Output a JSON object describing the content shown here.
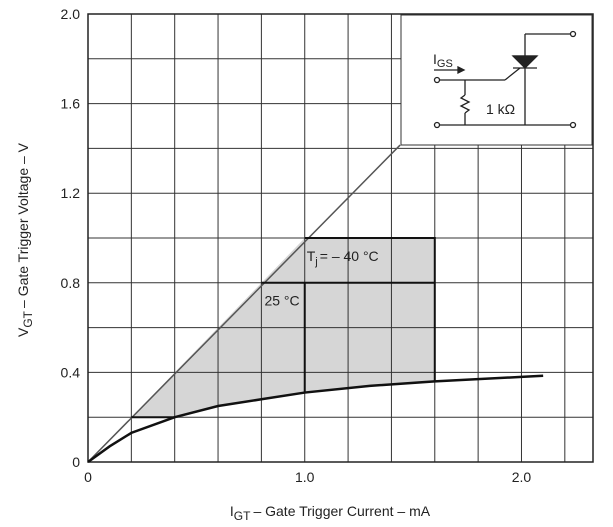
{
  "chart_data": {
    "type": "line",
    "y_label": {
      "main": "V",
      "sub": "GT",
      "rest": "– Gate Trigger Voltage – V"
    },
    "x_label": {
      "main": "I",
      "sub": "GT",
      "rest": "– Gate Trigger Current – mA"
    },
    "xlim": [
      0,
      2.33
    ],
    "ylim": [
      0,
      2.0
    ],
    "xticks": [
      0,
      {
        "value": 1,
        "label": "1.0"
      },
      {
        "value": 2,
        "label": "2.0"
      }
    ],
    "yticks": [
      0,
      0.4,
      0.8,
      1.2,
      1.6,
      {
        "value": 2,
        "label": "2.0"
      }
    ],
    "xgrid": [
      0.2,
      0.4,
      0.6,
      0.8,
      1.2,
      1.4,
      1.6,
      1.8,
      2.2
    ],
    "ygrid": [
      0.2,
      0.6,
      1.0,
      1.4,
      1.8
    ],
    "region": {
      "color": "#d6d6d6",
      "x": [
        0.2,
        1.0,
        1.6,
        1.6,
        1.3,
        1.0,
        0.8,
        0.6,
        0.4
      ],
      "values": [
        0.2,
        1.0,
        1.0,
        0.36,
        0.34,
        0.31,
        0.28,
        0.25,
        0.2
      ]
    },
    "series": [
      {
        "color": "#555",
        "width": 1.5,
        "x": [
          0,
          1.44
        ],
        "values": [
          0,
          1.415
        ]
      },
      {
        "color": "#111",
        "width": 2.5,
        "x": [
          0,
          0.1,
          0.2,
          0.4,
          0.6,
          0.8,
          1.0,
          1.3,
          1.6,
          2.0,
          2.1
        ],
        "values": [
          0,
          0.07,
          0.13,
          0.2,
          0.25,
          0.28,
          0.31,
          0.34,
          0.36,
          0.38,
          0.385
        ]
      },
      {
        "color": "#111",
        "width": 2,
        "x": [
          1.0,
          1.6,
          1.6
        ],
        "values": [
          1.0,
          1.0,
          0.36
        ]
      },
      {
        "color": "#111",
        "width": 2,
        "x": [
          0.8,
          1.6
        ],
        "values": [
          0.8,
          0.8
        ]
      },
      {
        "color": "#111",
        "width": 2,
        "x": [
          1.0,
          1.0
        ],
        "values": [
          0.8,
          0.31
        ]
      },
      {
        "color": "#111",
        "width": 2,
        "x": [
          0.2,
          0.4
        ],
        "values": [
          0.2,
          0.2
        ]
      }
    ],
    "annotations": [
      {
        "text": "T",
        "sub": "j",
        "rest": "= – 40 °C",
        "x": 1.0,
        "y": 0.92
      },
      {
        "text": "25 °C",
        "x": 0.805,
        "y": 0.72
      }
    ],
    "inset": {
      "current": {
        "main": "I",
        "sub": "GS"
      },
      "resistor": "1 kΩ"
    }
  }
}
